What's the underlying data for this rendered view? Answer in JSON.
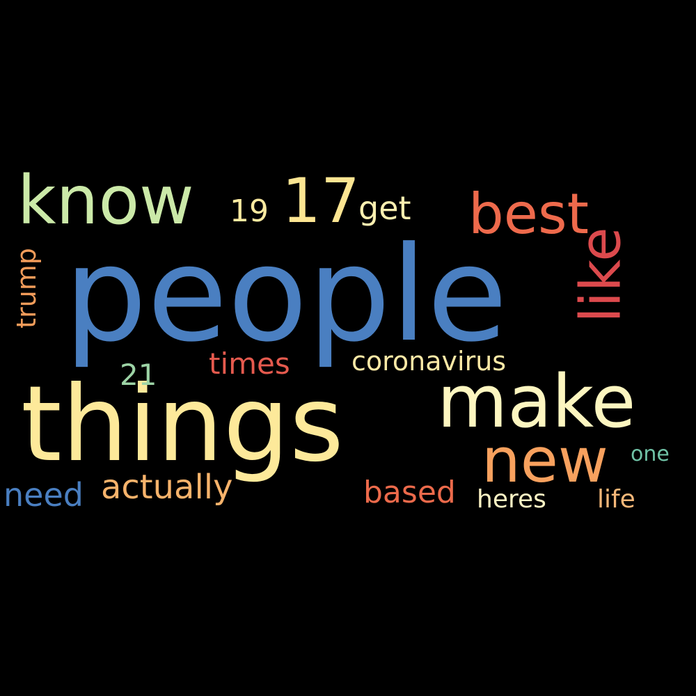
{
  "words": {
    "people": {
      "text": "people",
      "color": "#4a7fc1"
    },
    "things": {
      "text": "things",
      "color": "#fde99a"
    },
    "make": {
      "text": "make",
      "color": "#fdf6c0"
    },
    "know": {
      "text": "know",
      "color": "#cbe9a8"
    },
    "seventeen": {
      "text": "17",
      "color": "#fce592"
    },
    "best": {
      "text": "best",
      "color": "#ee6a4c"
    },
    "like": {
      "text": "like",
      "color": "#dc4a4d"
    },
    "new": {
      "text": "new",
      "color": "#f8a15e"
    },
    "get": {
      "text": "get",
      "color": "#fbefb0"
    },
    "nineteen": {
      "text": "19",
      "color": "#fbeaa0"
    },
    "trump": {
      "text": "trump",
      "color": "#f39c5a"
    },
    "times": {
      "text": "times",
      "color": "#e55a4e"
    },
    "coronavirus": {
      "text": "coronavirus",
      "color": "#fde9a6"
    },
    "twentyone": {
      "text": "21",
      "color": "#9dd4a6"
    },
    "actually": {
      "text": "actually",
      "color": "#f7b36b"
    },
    "need": {
      "text": "need",
      "color": "#4a7fc1"
    },
    "based": {
      "text": "based",
      "color": "#ec6a4b"
    },
    "one": {
      "text": "one",
      "color": "#6fc1a5"
    },
    "heres": {
      "text": "heres",
      "color": "#fdf4c4"
    },
    "life": {
      "text": "life",
      "color": "#f7b879"
    }
  }
}
